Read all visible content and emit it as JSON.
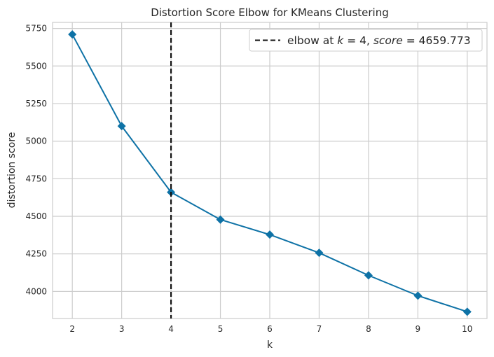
{
  "chart_data": {
    "type": "line",
    "title": "Distortion Score Elbow for KMeans Clustering",
    "xlabel": "k",
    "ylabel": "distortion score",
    "x": [
      2,
      3,
      4,
      5,
      6,
      7,
      8,
      9,
      10
    ],
    "series": [
      {
        "values": [
          5710,
          5100,
          4660,
          4478,
          4378,
          4257,
          4107,
          3972,
          3865
        ]
      }
    ],
    "xlim": [
      1.6,
      10.4
    ],
    "ylim": [
      3820,
      5790
    ],
    "xticks": [
      "2",
      "3",
      "4",
      "5",
      "6",
      "7",
      "8",
      "9",
      "10"
    ],
    "yticks": [
      "4000",
      "4250",
      "4500",
      "4750",
      "5000",
      "5250",
      "5500",
      "5750"
    ],
    "elbow": {
      "k": 4,
      "score": 4659.773,
      "legend_prefix": "elbow at ",
      "legend_k": "k",
      "legend_eq1": " = 4, ",
      "legend_score": "score",
      "legend_eq2": " = 4659.773"
    },
    "grid": true,
    "legend_position": "top-right",
    "colors": {
      "line": "#0e72a6",
      "elbow": "#111111",
      "grid": "#cccccc",
      "spine": "#cccccc"
    }
  }
}
